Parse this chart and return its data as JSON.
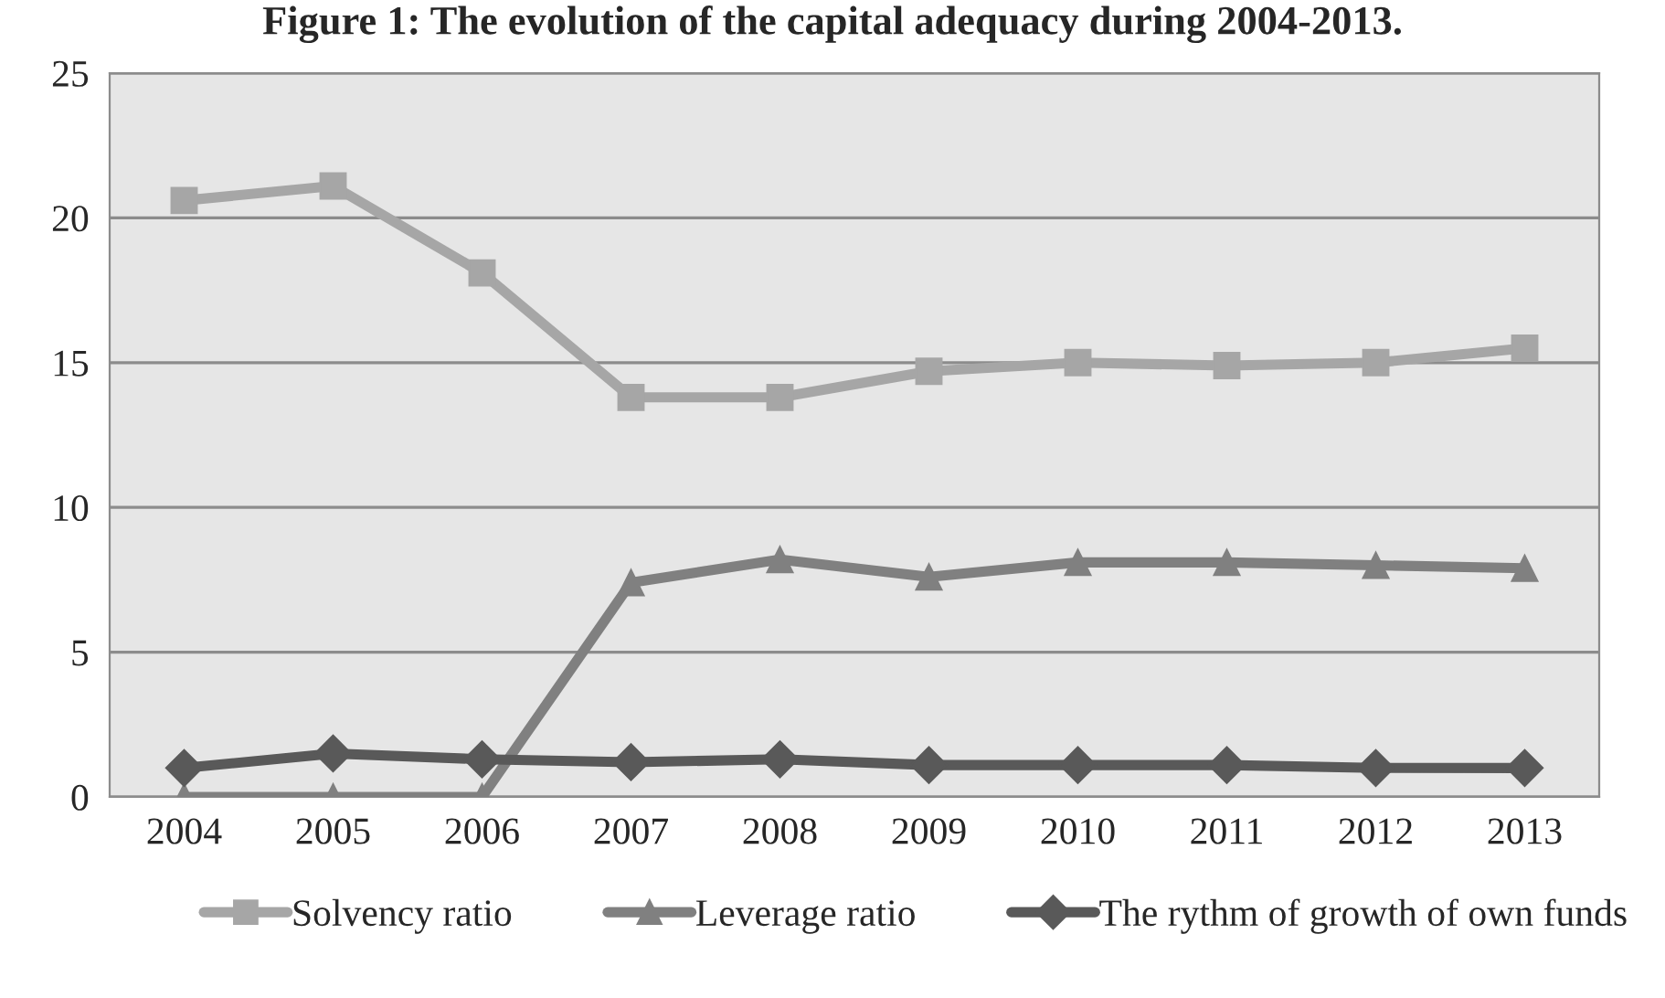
{
  "chart_data": {
    "type": "line",
    "title": "Figure 1: The evolution of the capital adequacy during 2004-2013.",
    "categories": [
      "2004",
      "2005",
      "2006",
      "2007",
      "2008",
      "2009",
      "2010",
      "2011",
      "2012",
      "2013"
    ],
    "series": [
      {
        "name": "Solvency ratio",
        "color": "#a6a6a6",
        "marker": "square",
        "values": [
          20.6,
          21.1,
          18.1,
          13.8,
          13.8,
          14.7,
          15.0,
          14.9,
          15.0,
          15.5
        ]
      },
      {
        "name": "Leverage ratio",
        "color": "#808080",
        "marker": "triangle",
        "values": [
          0,
          0,
          0,
          7.4,
          8.2,
          7.6,
          8.1,
          8.1,
          8.0,
          7.9
        ]
      },
      {
        "name": "The rythm of growth of own funds",
        "color": "#595959",
        "marker": "diamond",
        "values": [
          1.0,
          1.5,
          1.3,
          1.2,
          1.3,
          1.1,
          1.1,
          1.1,
          1.0,
          1.0
        ]
      }
    ],
    "ylim": [
      0,
      25
    ],
    "yticks": [
      0,
      5,
      10,
      15,
      20,
      25
    ],
    "grid": "y",
    "legend": "bottom",
    "line_style": "solid"
  }
}
